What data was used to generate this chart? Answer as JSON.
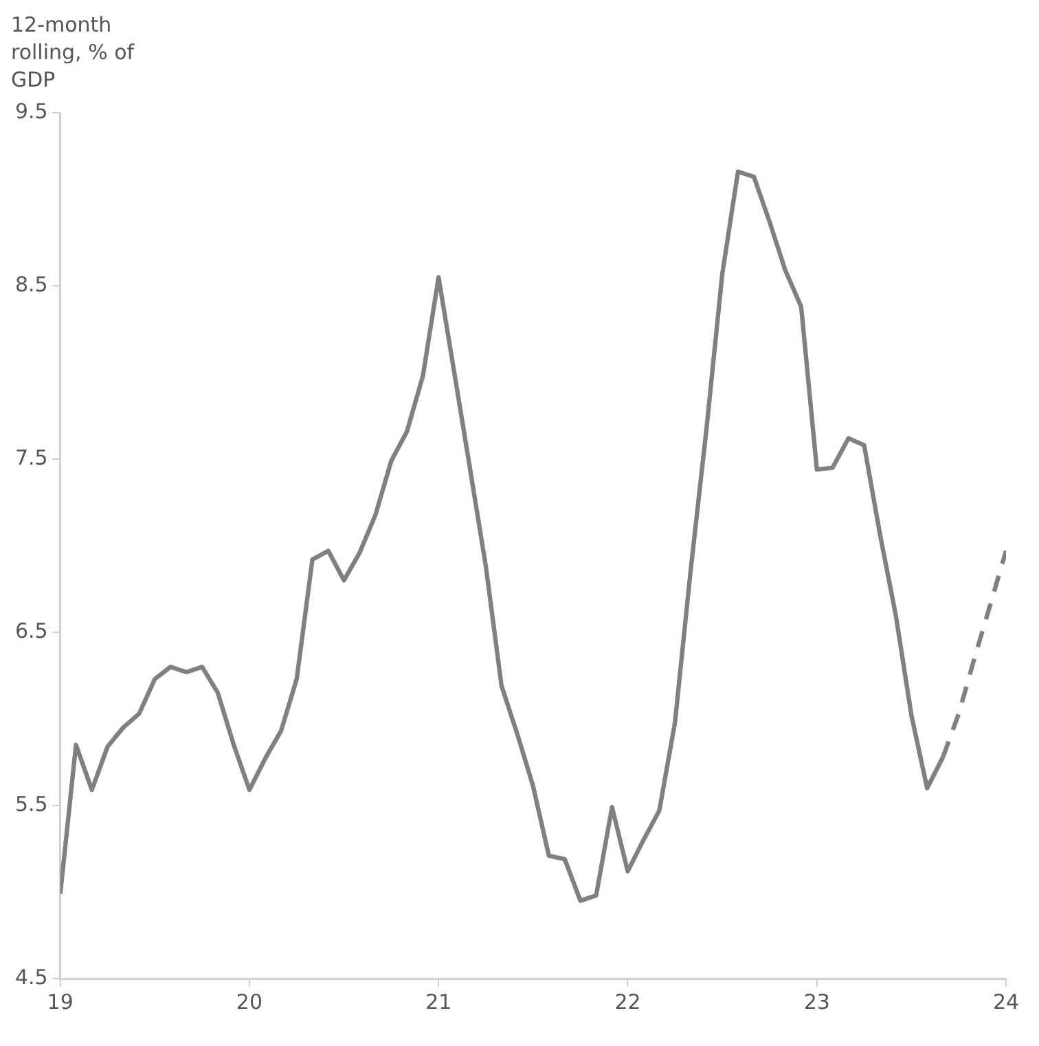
{
  "chart_data": {
    "type": "line",
    "ylabel": "12-month rolling, % of GDP",
    "xlim": [
      19,
      24
    ],
    "xticks": [
      19,
      20,
      21,
      22,
      23,
      24
    ],
    "ylim": [
      4.5,
      9.5
    ],
    "yticks": [
      4.5,
      5.5,
      6.5,
      7.5,
      8.5,
      9.5
    ],
    "grid": false,
    "legend": false,
    "marker": "none",
    "series": [
      {
        "color": "#808080",
        "line_style": "solid",
        "x": [
          19,
          19.083,
          19.167,
          19.25,
          19.333,
          19.417,
          19.5,
          19.583,
          19.667,
          19.75,
          19.833,
          19.917,
          20,
          20.083,
          20.167,
          20.25,
          20.333,
          20.417,
          20.5,
          20.583,
          20.667,
          20.75,
          20.833,
          20.917,
          21,
          21.083,
          21.167,
          21.25,
          21.333,
          21.417,
          21.5,
          21.583,
          21.667,
          21.75,
          21.833,
          21.917,
          22,
          22.083,
          22.167,
          22.25,
          22.333,
          22.417,
          22.5,
          22.583,
          22.667,
          22.75,
          22.833,
          22.917,
          23,
          23.083,
          23.167,
          23.25,
          23.333,
          23.417,
          23.5,
          23.583,
          23.667
        ],
        "values": [
          4.99,
          5.85,
          5.59,
          5.84,
          5.95,
          6.03,
          6.23,
          6.3,
          6.27,
          6.3,
          6.15,
          5.85,
          5.59,
          5.77,
          5.93,
          6.23,
          6.92,
          6.97,
          6.8,
          6.96,
          7.18,
          7.49,
          7.66,
          7.98,
          8.55,
          8.0,
          7.44,
          6.88,
          6.19,
          5.91,
          5.61,
          5.21,
          5.19,
          4.95,
          4.98,
          5.49,
          5.12,
          5.3,
          5.47,
          5.98,
          6.86,
          7.68,
          8.57,
          9.16,
          9.13,
          8.87,
          8.59,
          8.38,
          7.44,
          7.45,
          7.62,
          7.58,
          7.07,
          6.6,
          6.02,
          5.6,
          5.78
        ]
      },
      {
        "color": "#808080",
        "line_style": "dashed",
        "x": [
          23.667,
          23.75,
          23.833,
          23.917,
          24
        ],
        "values": [
          5.78,
          6.03,
          6.35,
          6.66,
          6.97
        ]
      }
    ]
  }
}
